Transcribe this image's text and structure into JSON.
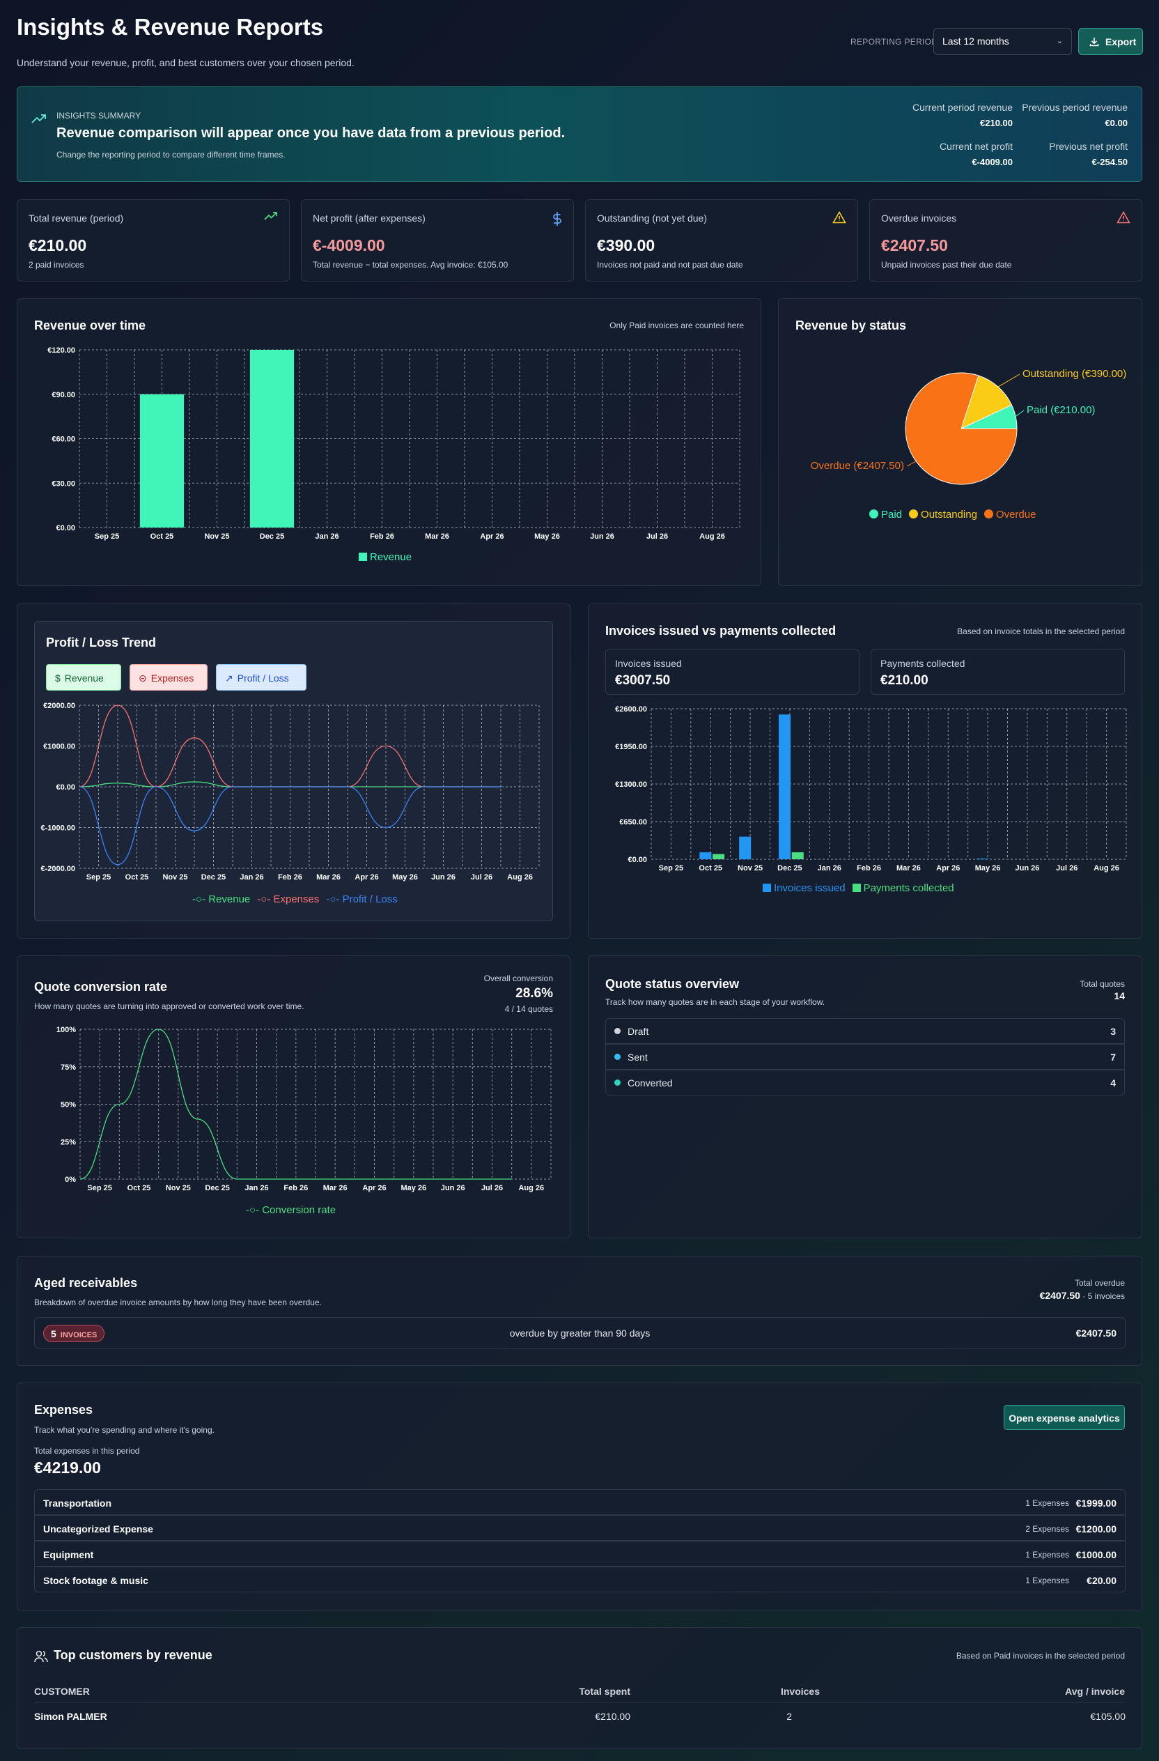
{
  "header": {
    "title": "Insights & Revenue Reports",
    "subtitle": "Understand your revenue, profit, and best customers over your chosen period.",
    "period_label": "REPORTING PERIOD",
    "period_value": "Last 12 months",
    "export_label": "Export"
  },
  "banner": {
    "kicker": "INSIGHTS SUMMARY",
    "headline": "Revenue comparison will appear once you have data from a previous period.",
    "note": "Change the reporting period to compare different time frames.",
    "stats": [
      {
        "label": "Current period revenue",
        "value": "€210.00"
      },
      {
        "label": "Previous period revenue",
        "value": "€0.00"
      },
      {
        "label": "Current net profit",
        "value": "€-4009.00"
      },
      {
        "label": "Previous net profit",
        "value": "€-254.50"
      }
    ]
  },
  "kpis": [
    {
      "title": "Total revenue (period)",
      "value": "€210.00",
      "sub": "2 paid invoices",
      "icon": "trending-up-icon",
      "color": "#ffffff"
    },
    {
      "title": "Net profit (after expenses)",
      "value": "€-4009.00",
      "sub": "Total revenue − total expenses. Avg invoice: €105.00",
      "icon": "dollar-icon",
      "color": "#f59a9a"
    },
    {
      "title": "Outstanding (not yet due)",
      "value": "€390.00",
      "sub": "Invoices not paid and not past due date",
      "icon": "warning-icon",
      "color": "#ffffff"
    },
    {
      "title": "Overdue invoices",
      "value": "€2407.50",
      "sub": "Unpaid invoices past their due date",
      "icon": "alert-icon",
      "color": "#f59a9a"
    }
  ],
  "revenue_over_time": {
    "title": "Revenue over time",
    "note": "Only Paid invoices are counted here",
    "legend": "Revenue"
  },
  "revenue_by_status": {
    "title": "Revenue by status",
    "labels": {
      "outstanding": "Outstanding (€390.00)",
      "paid": "Paid (€210.00)",
      "overdue": "Overdue (€2407.50)"
    },
    "legend": [
      "Paid",
      "Outstanding",
      "Overdue"
    ]
  },
  "profit_loss": {
    "title": "Profit / Loss Trend",
    "buttons": {
      "revenue": "Revenue",
      "expenses": "Expenses",
      "profit": "Profit / Loss"
    },
    "legend": [
      "Revenue",
      "Expenses",
      "Profit / Loss"
    ]
  },
  "invoices_vs_payments": {
    "title": "Invoices issued vs payments collected",
    "note": "Based on invoice totals in the selected period",
    "issued_label": "Invoices issued",
    "issued_value": "€3007.50",
    "collected_label": "Payments collected",
    "collected_value": "€210.00",
    "legend": [
      "Invoices issued",
      "Payments collected"
    ]
  },
  "quote_conversion": {
    "title": "Quote conversion rate",
    "subtitle": "How many quotes are turning into approved or converted work over time.",
    "overall_label": "Overall conversion",
    "overall_value": "28.6%",
    "overall_sub": "4 / 14 quotes",
    "legend": "Conversion rate"
  },
  "quote_status": {
    "title": "Quote status overview",
    "subtitle": "Track how many quotes are in each stage of your workflow.",
    "total_label": "Total quotes",
    "total_value": "14",
    "rows": [
      {
        "name": "Draft",
        "count": "3",
        "color": "#d1d5db"
      },
      {
        "name": "Sent",
        "count": "7",
        "color": "#38bdf8"
      },
      {
        "name": "Converted",
        "count": "4",
        "color": "#2dd4bf"
      }
    ]
  },
  "aged": {
    "title": "Aged receivables",
    "subtitle": "Breakdown of overdue invoice amounts by how long they have been overdue.",
    "total_label": "Total overdue",
    "total_value": "€2407.50",
    "total_sub": " · 5 invoices",
    "row_count": "5",
    "row_badge": "INVOICES",
    "row_text": "overdue by greater than 90 days",
    "row_amount": "€2407.50"
  },
  "expenses": {
    "title": "Expenses",
    "subtitle": "Track what you're spending and where it's going.",
    "button": "Open expense analytics",
    "total_label": "Total expenses in this period",
    "total_value": "€4219.00",
    "rows": [
      {
        "name": "Transportation",
        "count": "1 Expenses",
        "amount": "€1999.00"
      },
      {
        "name": "Uncategorized Expense",
        "count": "2 Expenses",
        "amount": "€1200.00"
      },
      {
        "name": "Equipment",
        "count": "1 Expenses",
        "amount": "€1000.00"
      },
      {
        "name": "Stock footage & music",
        "count": "1 Expenses",
        "amount": "€20.00"
      }
    ]
  },
  "customers": {
    "title": "Top customers by revenue",
    "note": "Based on Paid invoices in the selected period",
    "columns": {
      "customer": "CUSTOMER",
      "total": "Total spent",
      "invoices": "Invoices",
      "avg": "Avg / invoice"
    },
    "rows": [
      {
        "customer": "Simon PALMER",
        "total": "€210.00",
        "invoices": "2",
        "avg": "€105.00"
      }
    ]
  },
  "chart_data": [
    {
      "type": "bar",
      "id": "revenue_over_time",
      "categories": [
        "Sep 25",
        "Oct 25",
        "Nov 25",
        "Dec 25",
        "Jan 26",
        "Feb 26",
        "Mar 26",
        "Apr 26",
        "May 26",
        "Jun 26",
        "Jul 26",
        "Aug 26"
      ],
      "series": [
        {
          "name": "Revenue",
          "values": [
            0,
            90,
            0,
            120,
            0,
            0,
            0,
            0,
            0,
            0,
            0,
            0
          ],
          "color": "#3ff5b8"
        }
      ],
      "yticks": [
        "€0.00",
        "€30.00",
        "€60.00",
        "€90.00",
        "€120.00"
      ],
      "ylim": [
        0,
        120
      ],
      "grid": true,
      "legend": "bottom"
    },
    {
      "type": "pie",
      "id": "revenue_by_status",
      "slices": [
        {
          "name": "Paid",
          "value": 210,
          "color": "#3ff5b8"
        },
        {
          "name": "Outstanding",
          "value": 390,
          "color": "#facc15"
        },
        {
          "name": "Overdue",
          "value": 2407.5,
          "color": "#f97316"
        }
      ],
      "legend": "bottom"
    },
    {
      "type": "line",
      "id": "profit_loss",
      "categories": [
        "Sep 25",
        "Oct 25",
        "Nov 25",
        "Dec 25",
        "Jan 26",
        "Feb 26",
        "Mar 26",
        "Apr 26",
        "May 26",
        "Jun 26",
        "Jul 26",
        "Aug 26"
      ],
      "series": [
        {
          "name": "Revenue",
          "values": [
            0,
            90,
            0,
            120,
            0,
            0,
            0,
            0,
            0,
            0,
            0,
            0
          ],
          "color": "#4ade80"
        },
        {
          "name": "Expenses",
          "values": [
            0,
            2000,
            0,
            1200,
            0,
            0,
            0,
            0,
            1000,
            0,
            0,
            0
          ],
          "color": "#f87171"
        },
        {
          "name": "Profit / Loss",
          "values": [
            0,
            -1910,
            0,
            -1080,
            0,
            0,
            0,
            0,
            -1000,
            0,
            0,
            0
          ],
          "color": "#3b82f6"
        }
      ],
      "yticks": [
        "€-2000.00",
        "€-1000.00",
        "€0.00",
        "€1000.00",
        "€2000.00"
      ],
      "ylim": [
        -2000,
        2000
      ],
      "grid": true,
      "legend": "bottom"
    },
    {
      "type": "bar",
      "id": "invoices_vs_payments",
      "categories": [
        "Sep 25",
        "Oct 25",
        "Nov 25",
        "Dec 25",
        "Jan 26",
        "Feb 26",
        "Mar 26",
        "Apr 26",
        "May 26",
        "Jun 26",
        "Jul 26",
        "Aug 26"
      ],
      "series": [
        {
          "name": "Invoices issued",
          "values": [
            0,
            120,
            390,
            2500,
            0,
            0,
            0,
            0,
            12,
            0,
            0,
            0
          ],
          "color": "#2196f3"
        },
        {
          "name": "Payments collected",
          "values": [
            0,
            90,
            0,
            120,
            0,
            0,
            0,
            0,
            0,
            0,
            0,
            0
          ],
          "color": "#4ade80"
        }
      ],
      "yticks": [
        "€0.00",
        "€650.00",
        "€1300.00",
        "€1950.00",
        "€2600.00"
      ],
      "ylim": [
        0,
        2600
      ],
      "grid": true,
      "legend": "bottom"
    },
    {
      "type": "line",
      "id": "quote_conversion",
      "categories": [
        "Sep 25",
        "Oct 25",
        "Nov 25",
        "Dec 25",
        "Jan 26",
        "Feb 26",
        "Mar 26",
        "Apr 26",
        "May 26",
        "Jun 26",
        "Jul 26",
        "Aug 26"
      ],
      "series": [
        {
          "name": "Conversion rate",
          "values": [
            0,
            50,
            100,
            40,
            0,
            0,
            0,
            0,
            0,
            0,
            0,
            0
          ],
          "color": "#4ade80"
        }
      ],
      "yticks": [
        "0%",
        "25%",
        "50%",
        "75%",
        "100%"
      ],
      "ylim": [
        0,
        100
      ],
      "grid": true,
      "legend": "bottom"
    }
  ]
}
